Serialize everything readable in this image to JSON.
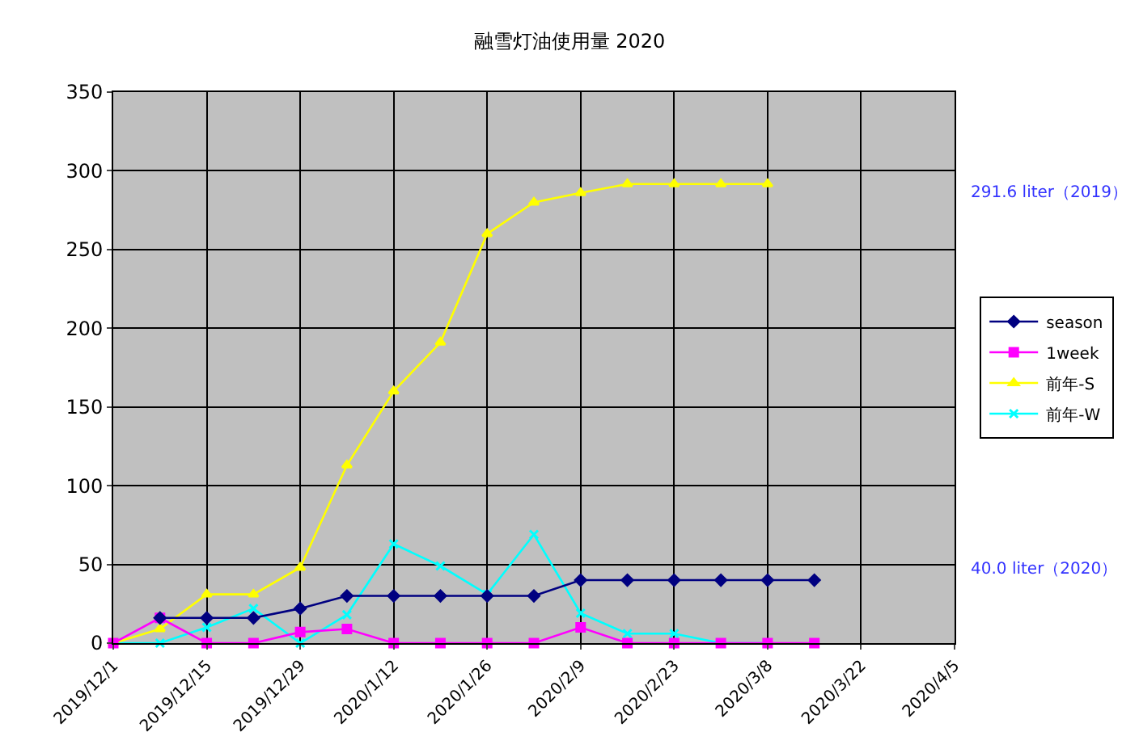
{
  "chart_data": {
    "type": "line",
    "title": "融雪灯油使用量 2020",
    "x": [
      "2019-12-01",
      "2019-12-08",
      "2019-12-15",
      "2019-12-22",
      "2019-12-29",
      "2020-01-05",
      "2020-01-12",
      "2020-01-19",
      "2020-01-26",
      "2020-02-02",
      "2020-02-09",
      "2020-02-16",
      "2020-02-23",
      "2020-03-01",
      "2020-03-08",
      "2020-03-15"
    ],
    "series": [
      {
        "name": "season",
        "color": "#000080",
        "marker": "diamond",
        "values": [
          null,
          16,
          16,
          16,
          22,
          30,
          30,
          30,
          30,
          30,
          40,
          40,
          40,
          40,
          40,
          40
        ]
      },
      {
        "name": "1week",
        "color": "#ff00ff",
        "marker": "square",
        "values": [
          0,
          16,
          0,
          0,
          7,
          9,
          0,
          0,
          0,
          0,
          10,
          0,
          0,
          0,
          0,
          0
        ]
      },
      {
        "name": "前年-S",
        "color": "#ffff00",
        "marker": "triangle",
        "values": [
          0,
          9,
          31,
          31,
          48,
          113,
          160,
          191,
          260,
          280,
          286,
          291.6,
          291.6,
          291.6,
          291.6,
          null
        ]
      },
      {
        "name": "前年-W",
        "color": "#00ffff",
        "marker": "cross",
        "values": [
          0,
          0,
          10,
          22,
          0,
          18,
          63,
          49,
          31,
          69,
          19,
          6,
          6,
          0,
          0,
          null
        ]
      }
    ],
    "xlim": [
      "2019-12-01",
      "2020-04-05"
    ],
    "xticks": [
      {
        "value": "2019-12-01",
        "label": "2019/12/1"
      },
      {
        "value": "2019-12-15",
        "label": "2019/12/15"
      },
      {
        "value": "2019-12-29",
        "label": "2019/12/29"
      },
      {
        "value": "2020-01-12",
        "label": "2020/1/12"
      },
      {
        "value": "2020-01-26",
        "label": "2020/1/26"
      },
      {
        "value": "2020-02-09",
        "label": "2020/2/9"
      },
      {
        "value": "2020-02-23",
        "label": "2020/2/23"
      },
      {
        "value": "2020-03-08",
        "label": "2020/3/8"
      },
      {
        "value": "2020-03-22",
        "label": "2020/3/22"
      },
      {
        "value": "2020-04-05",
        "label": "2020/4/5"
      }
    ],
    "ylim": [
      0,
      350
    ],
    "yticks": [
      0,
      50,
      100,
      150,
      200,
      250,
      300,
      350
    ],
    "grid": true,
    "legend": "right",
    "annotations": [
      "291.6 liter（2019）",
      "40.0 liter（2020）"
    ]
  }
}
